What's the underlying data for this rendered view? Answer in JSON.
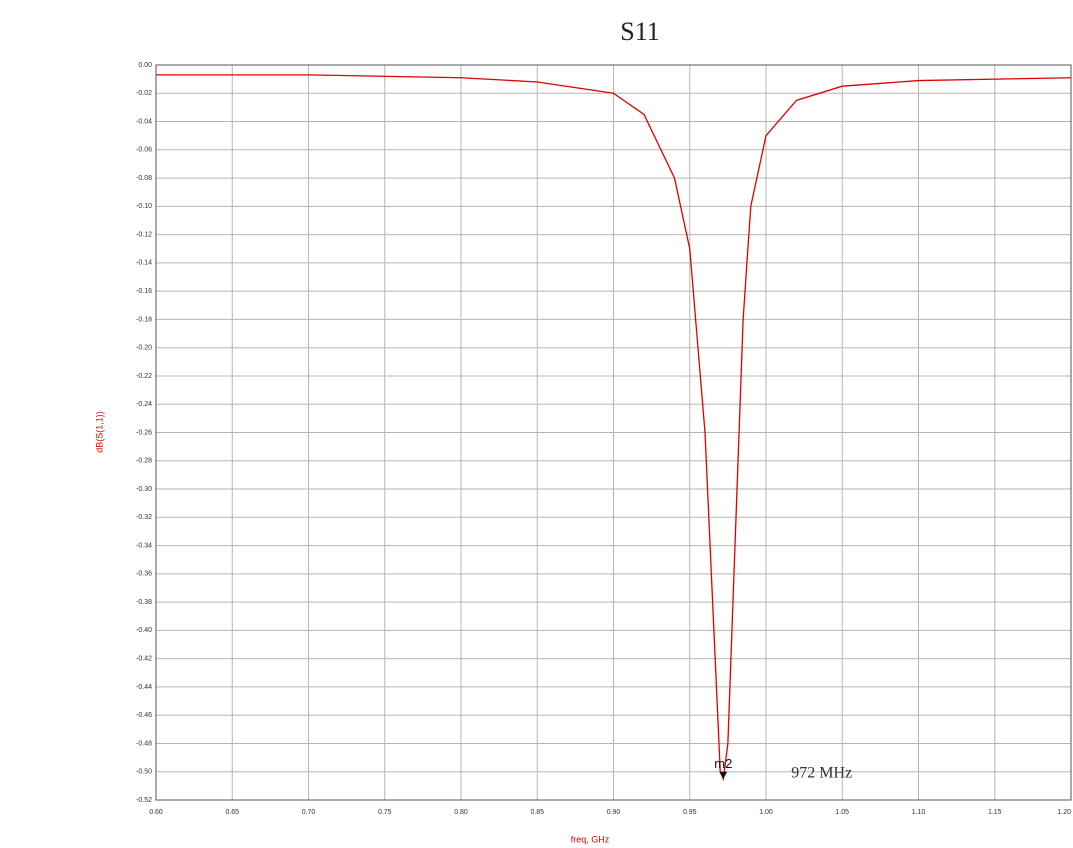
{
  "chart_data": {
    "type": "line",
    "title": "S11",
    "x_label": "freq, GHz",
    "y_label": "dB(S(1,1))",
    "x": [
      0.6,
      0.7,
      0.8,
      0.85,
      0.9,
      0.92,
      0.94,
      0.95,
      0.96,
      0.965,
      0.97,
      0.972,
      0.975,
      0.98,
      0.985,
      0.99,
      1.0,
      1.02,
      1.05,
      1.1,
      1.2
    ],
    "series": [
      {
        "name": "dB(S(1,1))",
        "color": "#e00000",
        "values": [
          -0.007,
          -0.007,
          -0.009,
          -0.012,
          -0.02,
          -0.035,
          -0.08,
          -0.13,
          -0.26,
          -0.38,
          -0.5,
          -0.505,
          -0.48,
          -0.33,
          -0.18,
          -0.1,
          -0.05,
          -0.025,
          -0.015,
          -0.011,
          -0.009
        ]
      }
    ],
    "marker": {
      "label": "m2",
      "x": 0.972,
      "y": -0.505,
      "annotation": "972 MHz"
    },
    "xlim": [
      0.6,
      1.2
    ],
    "ylim": [
      -0.52,
      0.0
    ],
    "xticks": [
      {
        "value": 0.6,
        "label": "0.60"
      },
      {
        "value": 0.65,
        "label": "0.65"
      },
      {
        "value": 0.7,
        "label": "0.70"
      },
      {
        "value": 0.75,
        "label": "0.75"
      },
      {
        "value": 0.8,
        "label": "0.80"
      },
      {
        "value": 0.85,
        "label": "0.85"
      },
      {
        "value": 0.9,
        "label": "0.90"
      },
      {
        "value": 0.95,
        "label": "0.95"
      },
      {
        "value": 1.0,
        "label": "1.00"
      },
      {
        "value": 1.05,
        "label": "1.05"
      },
      {
        "value": 1.1,
        "label": "1.10"
      },
      {
        "value": 1.15,
        "label": "1.15"
      },
      {
        "value": 1.2,
        "label": "1.20"
      }
    ],
    "yticks": [
      {
        "value": 0.0,
        "label": "0.00"
      },
      {
        "value": -0.02,
        "label": "-0.02"
      },
      {
        "value": -0.04,
        "label": "-0.04"
      },
      {
        "value": -0.06,
        "label": "-0.06"
      },
      {
        "value": -0.08,
        "label": "-0.08"
      },
      {
        "value": -0.1,
        "label": "-0.10"
      },
      {
        "value": -0.12,
        "label": "-0.12"
      },
      {
        "value": -0.14,
        "label": "-0.14"
      },
      {
        "value": -0.16,
        "label": "-0.16"
      },
      {
        "value": -0.18,
        "label": "-0.18"
      },
      {
        "value": -0.2,
        "label": "-0.20"
      },
      {
        "value": -0.22,
        "label": "-0.22"
      },
      {
        "value": -0.24,
        "label": "-0.24"
      },
      {
        "value": -0.26,
        "label": "-0.26"
      },
      {
        "value": -0.28,
        "label": "-0.28"
      },
      {
        "value": -0.3,
        "label": "-0.30"
      },
      {
        "value": -0.32,
        "label": "-0.32"
      },
      {
        "value": -0.34,
        "label": "-0.34"
      },
      {
        "value": -0.36,
        "label": "-0.36"
      },
      {
        "value": -0.38,
        "label": "-0.38"
      },
      {
        "value": -0.4,
        "label": "-0.40"
      },
      {
        "value": -0.42,
        "label": "-0.42"
      },
      {
        "value": -0.44,
        "label": "-0.44"
      },
      {
        "value": -0.46,
        "label": "-0.46"
      },
      {
        "value": -0.48,
        "label": "-0.48"
      },
      {
        "value": -0.5,
        "label": "-0.50"
      },
      {
        "value": -0.52,
        "label": "-0.52"
      }
    ],
    "grid": true
  }
}
